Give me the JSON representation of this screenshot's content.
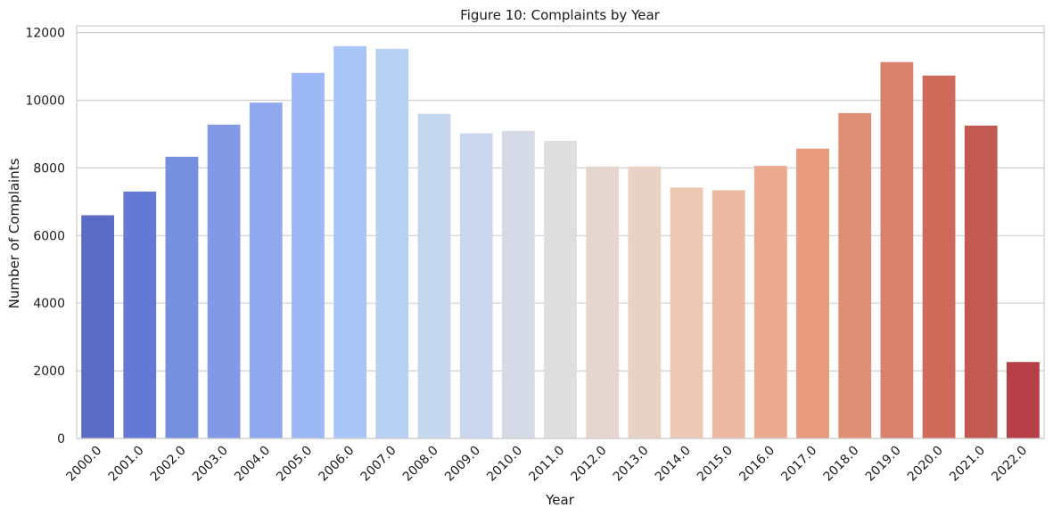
{
  "chart_data": {
    "type": "bar",
    "title": "Figure 10: Complaints by Year",
    "xlabel": "Year",
    "ylabel": "Number of Complaints",
    "categories": [
      "2000.0",
      "2001.0",
      "2002.0",
      "2003.0",
      "2004.0",
      "2005.0",
      "2006.0",
      "2007.0",
      "2008.0",
      "2009.0",
      "2010.0",
      "2011.0",
      "2012.0",
      "2013.0",
      "2014.0",
      "2015.0",
      "2016.0",
      "2017.0",
      "2018.0",
      "2019.0",
      "2020.0",
      "2021.0",
      "2022.0"
    ],
    "values": [
      6600,
      7300,
      8330,
      9280,
      9930,
      10810,
      11600,
      11520,
      9600,
      9020,
      9090,
      8800,
      8040,
      8040,
      7420,
      7340,
      8060,
      8570,
      9620,
      11130,
      10730,
      9250,
      2260
    ],
    "colors": [
      "#5a6cc5",
      "#6478d6",
      "#7590df",
      "#8399e6",
      "#90a8ee",
      "#9db9f5",
      "#a9c5f7",
      "#b8d0f4",
      "#c5d6ef",
      "#cad7ee",
      "#d5dae6",
      "#dedede",
      "#e5d7d0",
      "#e8d2c5",
      "#ecc8b4",
      "#ecbaa2",
      "#ecab91",
      "#e89a7e",
      "#e08f77",
      "#d9836f",
      "#cf6a5a",
      "#c25a52",
      "#b73f47"
    ],
    "ylim": [
      0,
      12200
    ],
    "yticks": [
      0,
      2000,
      4000,
      6000,
      8000,
      10000,
      12000
    ],
    "grid": true,
    "legend": "none"
  }
}
